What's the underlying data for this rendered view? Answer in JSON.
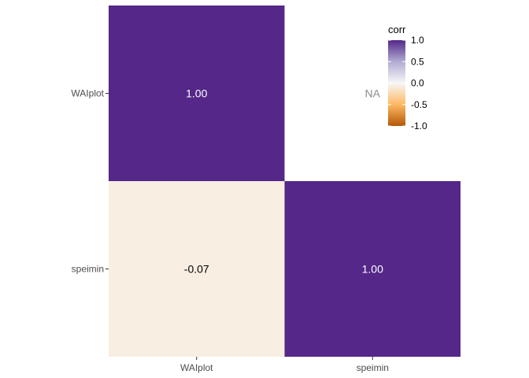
{
  "chart_data": {
    "type": "heatmap",
    "x_categories": [
      "WAIplot",
      "speimin"
    ],
    "y_categories": [
      "WAIplot",
      "speimin"
    ],
    "cells": [
      {
        "x": "WAIplot",
        "y": "WAIplot",
        "value": 1.0,
        "label": "1.00"
      },
      {
        "x": "speimin",
        "y": "WAIplot",
        "value": null,
        "label": "NA"
      },
      {
        "x": "WAIplot",
        "y": "speimin",
        "value": -0.07,
        "label": "-0.07"
      },
      {
        "x": "speimin",
        "y": "speimin",
        "value": 1.0,
        "label": "1.00"
      }
    ],
    "legend": {
      "title": "corr",
      "ticks": [
        {
          "value": 1.0,
          "label": "1.0"
        },
        {
          "value": 0.5,
          "label": "0.5"
        },
        {
          "value": 0.0,
          "label": "0.0"
        },
        {
          "value": -0.5,
          "label": "-0.5"
        },
        {
          "value": -1.0,
          "label": "-1.0"
        }
      ],
      "range": [
        -1,
        1
      ],
      "placement": "top-right (inside panel)"
    },
    "colors": {
      "low": "#b35806",
      "mid_low": "#fee0b6",
      "mid": "#f7f7f7",
      "mid_high": "#d8daeb",
      "high": "#542788",
      "na_text": "#8c8c8c"
    }
  }
}
